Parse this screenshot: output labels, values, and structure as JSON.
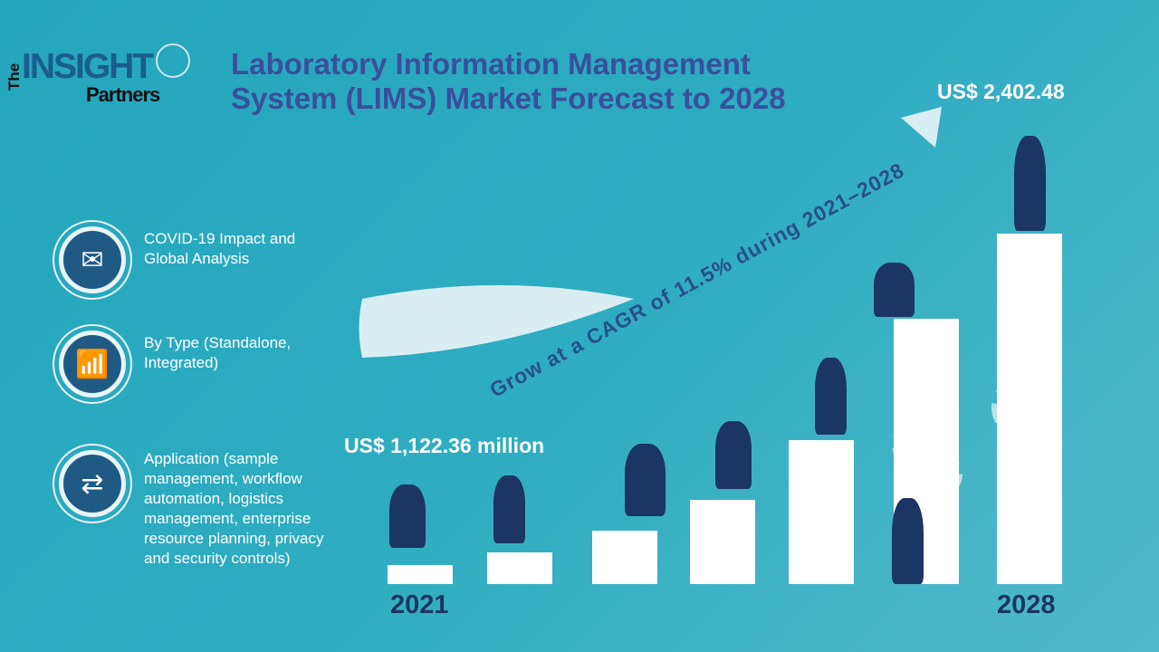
{
  "logo": {
    "the": "The",
    "insight": "INSIGHT",
    "partners": "Partners"
  },
  "title": {
    "line1": "Laboratory Information Management",
    "line2": "System (LIMS) Market Forecast to 2028"
  },
  "segments": [
    {
      "icon": "envelope-icon",
      "text": "COVID-19 Impact and Global Analysis"
    },
    {
      "icon": "growth-chart-icon",
      "text": "By Type (Standalone, Integrated)"
    },
    {
      "icon": "exchange-arrows-icon",
      "text": "Application (sample management, workflow automation, logistics management, enterprise resource planning, privacy and security controls)"
    }
  ],
  "cagr_text": "Grow at a CAGR of 11.5% during 2021–2028",
  "start": {
    "value": "US$ 1,122.36 million",
    "year": "2021"
  },
  "end": {
    "value": "US$ 2,402.48",
    "year": "2028"
  },
  "colors": {
    "background": "#2eacc2",
    "title": "#3a4f9c",
    "year": "#1b3564",
    "bars": "#ffffff"
  }
}
